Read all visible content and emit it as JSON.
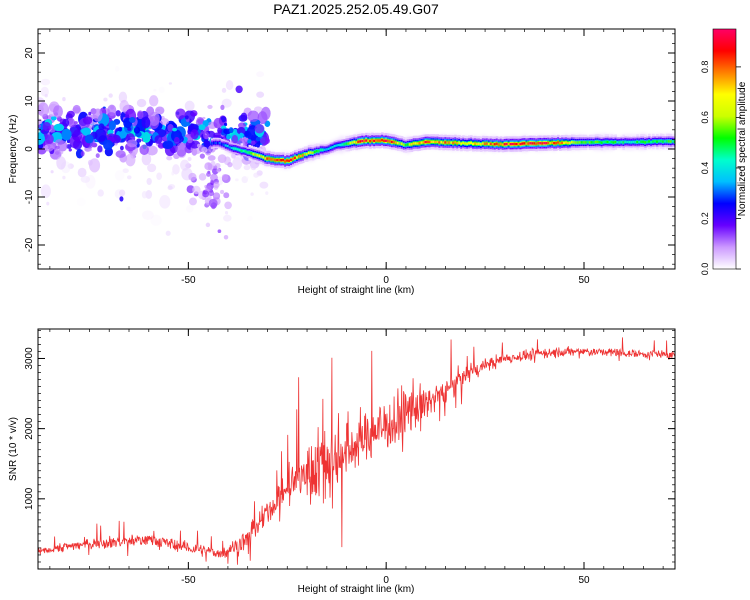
{
  "title": "PAZ1.2025.252.05.49.G07",
  "chart_data": [
    {
      "type": "heatmap",
      "xlabel": "Height of straight line (km)",
      "ylabel": "Frequency (Hz)",
      "xlim": [
        -88,
        73
      ],
      "ylim": [
        -25,
        25
      ],
      "xticks": [
        -50,
        0,
        50
      ],
      "yticks": [
        -20,
        -10,
        0,
        10,
        20
      ],
      "ridge": [
        {
          "x": -42,
          "y": 1.2,
          "a": 0.3
        },
        {
          "x": -38,
          "y": 0.0,
          "a": 0.45
        },
        {
          "x": -34,
          "y": -0.8,
          "a": 0.6
        },
        {
          "x": -30,
          "y": -2.0,
          "a": 0.8
        },
        {
          "x": -25,
          "y": -2.5,
          "a": 0.95
        },
        {
          "x": -20,
          "y": -1.0,
          "a": 0.7
        },
        {
          "x": -15,
          "y": 0.0,
          "a": 0.4
        },
        {
          "x": -12,
          "y": 0.8,
          "a": 0.45
        },
        {
          "x": -6,
          "y": 1.7,
          "a": 0.9
        },
        {
          "x": 0,
          "y": 1.8,
          "a": 0.95
        },
        {
          "x": 5,
          "y": 0.8,
          "a": 0.6
        },
        {
          "x": 10,
          "y": 1.5,
          "a": 0.9
        },
        {
          "x": 20,
          "y": 1.2,
          "a": 0.7
        },
        {
          "x": 30,
          "y": 1.0,
          "a": 0.9
        },
        {
          "x": 40,
          "y": 1.2,
          "a": 0.95
        },
        {
          "x": 50,
          "y": 1.4,
          "a": 0.55
        },
        {
          "x": 60,
          "y": 1.4,
          "a": 0.5
        },
        {
          "x": 73,
          "y": 1.6,
          "a": 0.55
        }
      ],
      "noise_region": {
        "x_range": [
          -88,
          -35
        ],
        "y_range": [
          -5,
          12
        ],
        "peak_amplitude": 0.5
      },
      "colorbar": {
        "label": "Normalized spectral amplitude",
        "range": [
          0.0,
          0.95
        ],
        "ticks": [
          0.0,
          0.2,
          0.4,
          0.6,
          0.8
        ],
        "tick_labels": [
          "0.0",
          "0.2",
          "0.4",
          "0.6",
          "0.8"
        ],
        "colors": [
          "#ffffff",
          "#cc99ff",
          "#6600ff",
          "#0000ff",
          "#00bfff",
          "#00ffcc",
          "#00ff00",
          "#ccff00",
          "#ffff00",
          "#ff8000",
          "#ff0000",
          "#ff0066"
        ]
      }
    },
    {
      "type": "line",
      "xlabel": "Height of straight line (km)",
      "ylabel": "SNR (10 * v/v)",
      "xlim": [
        -88,
        73
      ],
      "ylim": [
        0,
        3420
      ],
      "xticks": [
        -50,
        0,
        50
      ],
      "yticks": [
        1000,
        2000,
        3000
      ],
      "color": "#ee3333",
      "series": [
        {
          "name": "SNR",
          "x": [
            -88,
            -80,
            -70,
            -60,
            -50,
            -42,
            -38,
            -34,
            -30,
            -26,
            -22,
            -18,
            -14,
            -10,
            -5,
            0,
            5,
            10,
            15,
            20,
            25,
            30,
            40,
            50,
            60,
            73
          ],
          "mean": [
            250,
            330,
            380,
            420,
            300,
            220,
            320,
            500,
            800,
            1100,
            1300,
            1450,
            1500,
            1700,
            1900,
            2050,
            2200,
            2350,
            2550,
            2750,
            2900,
            3000,
            3080,
            3100,
            3080,
            3050
          ],
          "spread": [
            70,
            90,
            110,
            120,
            110,
            90,
            140,
            200,
            220,
            320,
            500,
            650,
            700,
            650,
            550,
            500,
            520,
            380,
            250,
            170,
            140,
            110,
            100,
            90,
            80,
            70
          ]
        }
      ]
    }
  ]
}
